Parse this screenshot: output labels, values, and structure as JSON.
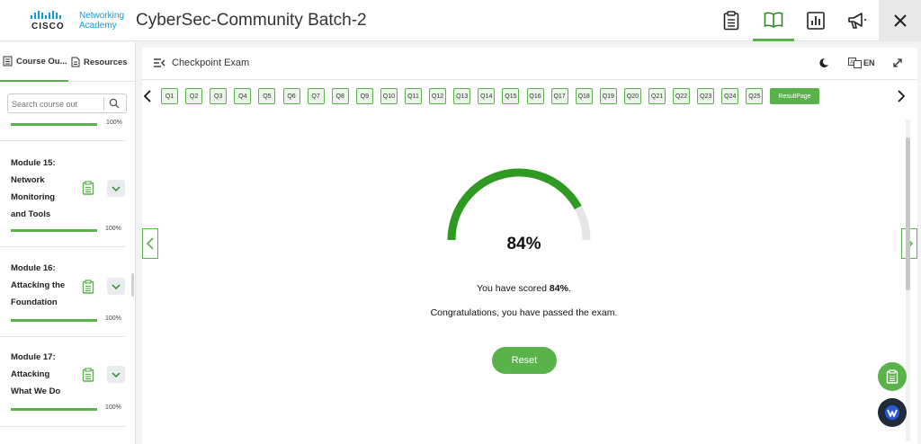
{
  "header": {
    "logo_cisco": "CISCO",
    "logo_line1": "Networking",
    "logo_line2": "Academy",
    "title": "CyberSec-Community Batch-2",
    "icons": [
      "clipboard-icon",
      "book-icon",
      "chart-icon",
      "megaphone-icon",
      "close-icon"
    ]
  },
  "sidebar": {
    "tabs": [
      {
        "label": "Course Ou...",
        "icon": "outline-icon",
        "active": true
      },
      {
        "label": "Resources",
        "icon": "document-icon",
        "active": false
      }
    ],
    "search_placeholder": "Search course out",
    "top_progress_pct": "100%",
    "modules": [
      {
        "title_lines": [
          "Module 15:",
          "Network",
          "Monitoring",
          "and Tools"
        ],
        "progress_pct": "100%",
        "progress": 1.0
      },
      {
        "title_lines": [
          "Module 16:",
          "Attacking the",
          "Foundation"
        ],
        "progress_pct": "100%",
        "progress": 1.0
      },
      {
        "title_lines": [
          "Module 17:",
          "Attacking",
          "What We Do"
        ],
        "progress_pct": "100%",
        "progress": 1.0
      }
    ]
  },
  "main": {
    "toolbar_title": "Checkpoint Exam",
    "language": "EN",
    "questions": [
      "Q1",
      "Q2",
      "Q3",
      "Q4",
      "Q5",
      "Q6",
      "Q7",
      "Q8",
      "Q9",
      "Q10",
      "Q11",
      "Q12",
      "Q13",
      "Q14",
      "Q15",
      "Q16",
      "Q17",
      "Q18",
      "Q19",
      "Q20",
      "Q21",
      "Q22",
      "Q23",
      "Q24",
      "Q25"
    ],
    "result_label": "ResultPage",
    "score_value": 84,
    "score_display": "84%",
    "score_prefix": "You have scored ",
    "score_bold": "84%",
    "score_suffix": ".",
    "congrats": "Congratulations, you have passed the exam.",
    "reset_label": "Reset"
  },
  "colors": {
    "accent": "#5ab24b",
    "gauge_fill": "#2e9a22",
    "gauge_track": "#e6e6e6"
  }
}
